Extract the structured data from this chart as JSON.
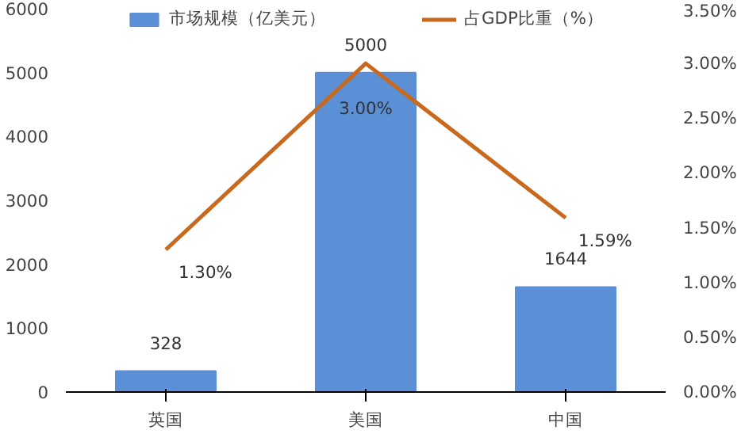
{
  "chart_data": {
    "type": "bar",
    "categories": [
      "英国",
      "美国",
      "中国"
    ],
    "series": [
      {
        "name": "市场规模（亿美元）",
        "color": "#5b8fd6",
        "values": [
          328,
          5000,
          1644
        ],
        "value_labels": [
          "328",
          "5000",
          "1644"
        ]
      },
      {
        "name": "占GDP比重（%）",
        "type": "line",
        "axis": "y2",
        "color": "#c8691e",
        "values": [
          1.3,
          3.0,
          1.59
        ],
        "value_labels": [
          "1.30%",
          "3.00%",
          "1.59%"
        ]
      }
    ],
    "ylim": [
      0,
      6000
    ],
    "yticks": [
      0,
      1000,
      2000,
      3000,
      4000,
      5000,
      6000
    ],
    "y2lim": [
      0,
      3.5
    ],
    "y2ticks": [
      {
        "value": 0,
        "label": "0.00%"
      },
      {
        "value": 0.5,
        "label": "0.50%"
      },
      {
        "value": 1.0,
        "label": "1.00%"
      },
      {
        "value": 1.5,
        "label": "1.50%"
      },
      {
        "value": 2.0,
        "label": "2.00%"
      },
      {
        "value": 2.5,
        "label": "2.50%"
      },
      {
        "value": 3.0,
        "label": "3.00%"
      },
      {
        "value": 3.5,
        "label": "3.50%"
      }
    ],
    "grid": false,
    "legend": "top"
  }
}
